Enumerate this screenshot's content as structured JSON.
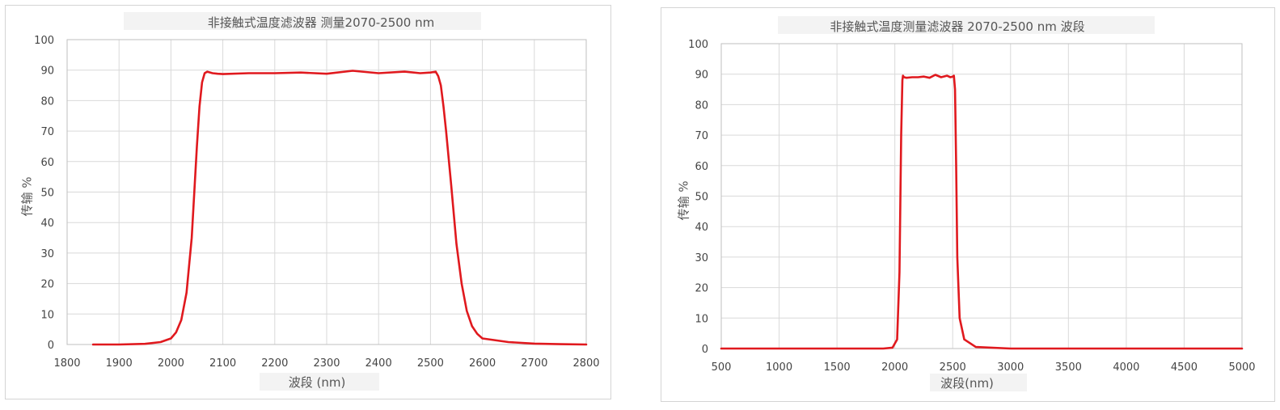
{
  "chart_data": [
    {
      "type": "line",
      "title": "非接触式温度滤波器 测量2070-2500 nm",
      "xlabel": "波段 (nm)",
      "ylabel": "传输 %",
      "xlim": [
        1800,
        2800
      ],
      "ylim": [
        0,
        100
      ],
      "xticks": [
        "1800",
        "1900",
        "2000",
        "2100",
        "2200",
        "2300",
        "2400",
        "2500",
        "2600",
        "2700",
        "2800"
      ],
      "yticks": [
        "0",
        "10",
        "20",
        "30",
        "40",
        "50",
        "60",
        "70",
        "80",
        "90",
        "100"
      ],
      "grid": true,
      "series": [
        {
          "color": "#e0191e",
          "x": [
            1850,
            1900,
            1950,
            1980,
            2000,
            2010,
            2020,
            2030,
            2040,
            2045,
            2050,
            2055,
            2060,
            2065,
            2070,
            2080,
            2090,
            2100,
            2150,
            2200,
            2250,
            2300,
            2350,
            2400,
            2450,
            2480,
            2500,
            2510,
            2515,
            2520,
            2525,
            2530,
            2540,
            2550,
            2560,
            2570,
            2580,
            2590,
            2600,
            2650,
            2700,
            2750,
            2800
          ],
          "y": [
            0,
            0,
            0.2,
            0.8,
            2,
            4,
            8,
            17,
            35,
            50,
            65,
            78,
            86,
            89,
            89.5,
            89,
            88.8,
            88.7,
            89,
            89,
            89.2,
            88.8,
            89.8,
            89,
            89.5,
            89,
            89.2,
            89.5,
            88,
            85,
            78,
            70,
            52,
            33,
            20,
            11,
            6,
            3.5,
            2,
            0.8,
            0.3,
            0.1,
            0
          ]
        }
      ]
    },
    {
      "type": "line",
      "title": "非接触式温度测量滤波器 2070-2500 nm 波段",
      "xlabel": "波段(nm)",
      "ylabel": "传输 %",
      "xlim": [
        500,
        5000
      ],
      "ylim": [
        0,
        100
      ],
      "xticks": [
        "500",
        "1000",
        "1500",
        "2000",
        "2500",
        "3000",
        "3500",
        "4000",
        "4500",
        "5000"
      ],
      "yticks": [
        "0",
        "10",
        "20",
        "30",
        "40",
        "50",
        "60",
        "70",
        "80",
        "90",
        "100"
      ],
      "grid": true,
      "series": [
        {
          "color": "#e0191e",
          "x": [
            500,
            1000,
            1500,
            1900,
            1980,
            2020,
            2040,
            2055,
            2065,
            2070,
            2080,
            2100,
            2150,
            2200,
            2250,
            2300,
            2350,
            2400,
            2450,
            2480,
            2500,
            2510,
            2520,
            2530,
            2540,
            2560,
            2600,
            2700,
            3000,
            3500,
            4000,
            5000
          ],
          "y": [
            0,
            0,
            0,
            0,
            0.3,
            3,
            25,
            70,
            88,
            89.5,
            89,
            88.8,
            89,
            89,
            89.2,
            88.8,
            89.8,
            89,
            89.5,
            89,
            89.2,
            89.5,
            85,
            60,
            30,
            10,
            3,
            0.5,
            0,
            0,
            0,
            0
          ]
        }
      ]
    }
  ]
}
